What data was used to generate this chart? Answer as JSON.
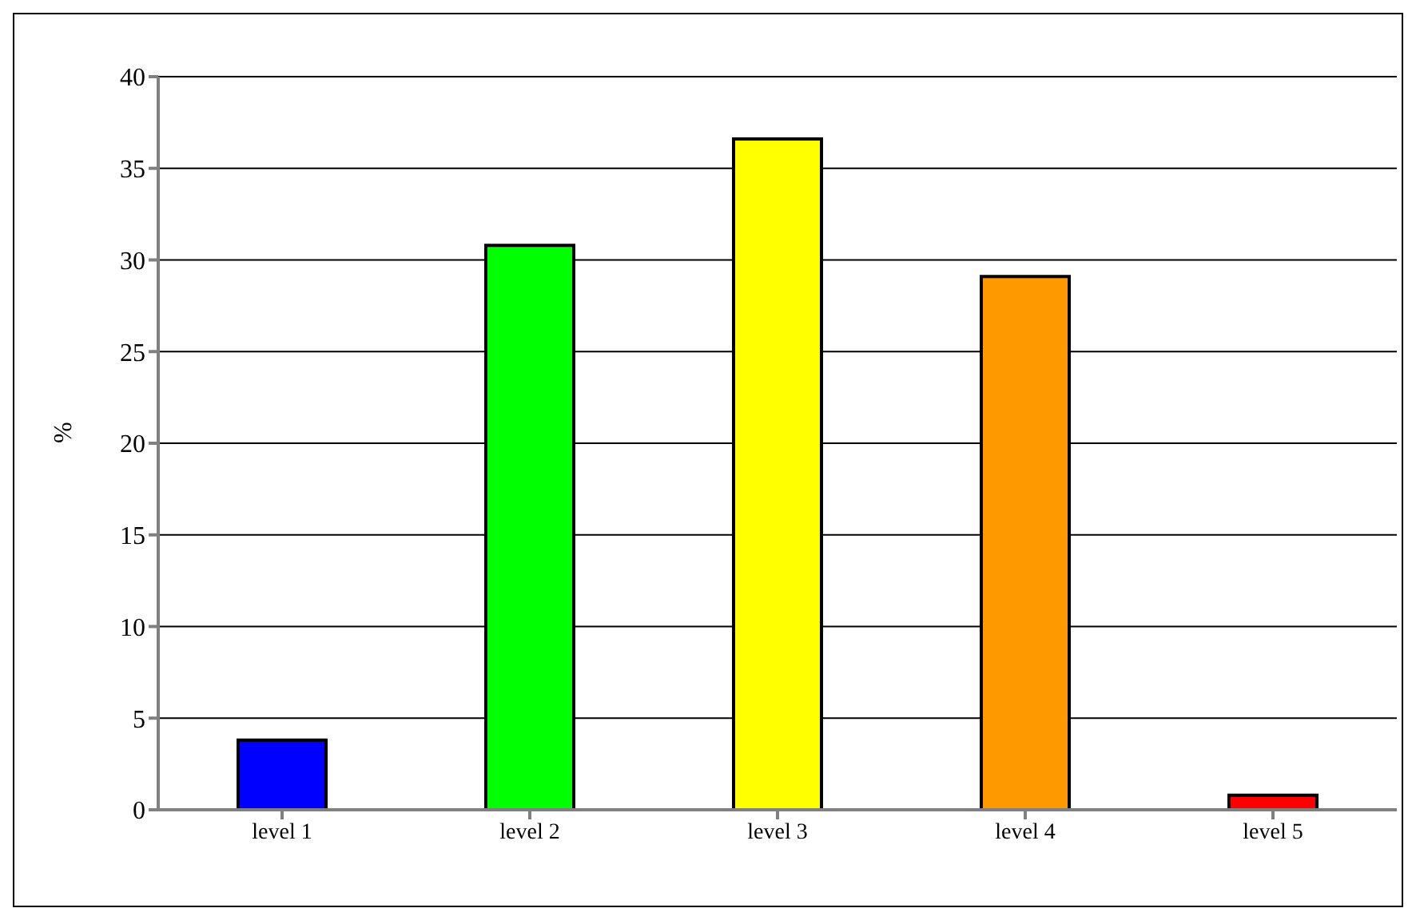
{
  "chart_data": {
    "type": "bar",
    "ylabel": "%",
    "categories": [
      "level 1",
      "level 2",
      "level 3",
      "level 4",
      "level 5"
    ],
    "values": [
      3.8,
      30.8,
      36.6,
      29.1,
      0.8
    ],
    "colors": [
      "#0000ff",
      "#00ff00",
      "#ffff00",
      "#ff9900",
      "#ff0000"
    ],
    "ylim": [
      0,
      40
    ],
    "yticks": [
      0,
      5,
      10,
      15,
      20,
      25,
      30,
      35,
      40
    ],
    "grid": "y",
    "legend": false
  }
}
